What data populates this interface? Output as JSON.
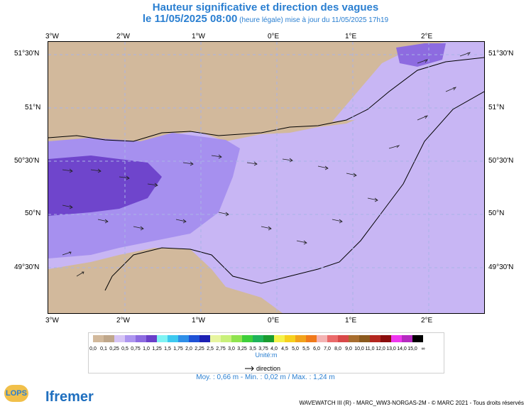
{
  "title_line1": "Hauteur significative et direction des vagues",
  "title_line2_main": "le 11/05/2025 08:00",
  "title_line2_sub": " (heure légale) mise à jour du 11/05/2025 17h19",
  "axes": {
    "top_lon": [
      "3°W",
      "2°W",
      "1°W",
      "0°E",
      "1°E",
      "2°E"
    ],
    "bottom_lon": [
      "3°W",
      "2°W",
      "1°W",
      "0°E",
      "1°E",
      "2°E"
    ],
    "left_lat": [
      "51°30'N",
      "51°N",
      "50°30'N",
      "50°N",
      "49°30'N"
    ],
    "right_lat": [
      "51°30'N",
      "51°N",
      "50°30'N",
      "50°N",
      "49°30'N"
    ]
  },
  "legend": {
    "values": [
      "0,0",
      "0,1",
      "0,25",
      "0,5",
      "0,75",
      "1,0",
      "1,25",
      "1,5",
      "1,75",
      "2,0",
      "2,25",
      "2,5",
      "2,75",
      "3,0",
      "3,25",
      "3,5",
      "3,75",
      "4,0",
      "4,5",
      "5,0",
      "5,5",
      "6,0",
      "7,0",
      "8,0",
      "9,0",
      "10,0",
      "11,0",
      "12,0",
      "13,0",
      "14,0",
      "15,0",
      "∞"
    ],
    "colors": [
      "#d2b99c",
      "#bfa78b",
      "#d6c4f5",
      "#ad95ef",
      "#8d6be0",
      "#6a3fc9",
      "#7ff3f3",
      "#3ec9ef",
      "#2f8fe8",
      "#1f52d6",
      "#1c20b3",
      "#e7f5a0",
      "#c8f07a",
      "#8fe34f",
      "#3ecf3a",
      "#1fb35a",
      "#1a9c2f",
      "#f4f24a",
      "#f6d01e",
      "#f2a31b",
      "#f07a1b",
      "#f3b3b3",
      "#ea6a6a",
      "#d84848",
      "#a86d2e",
      "#8b5a1e",
      "#b3261e",
      "#8a0d0d",
      "#ef36ef",
      "#b52ac0",
      "#000000"
    ],
    "unit": "Unité:m",
    "direction_label": "direction"
  },
  "stats": "Moy. : 0,66 m   -   Min. : 0,02 m / Max. : 1,24 m",
  "footer": "WAVEWATCH III (R) - MARC_WW3-NORGAS-2M - © MARC 2021 - Tous droits réservés",
  "logos": {
    "lops": "LOPS",
    "ifremer": "Ifremer"
  },
  "palette": {
    "land": "#d2b99c",
    "title": "#2a7fd1",
    "grid": "#a9b4e6"
  }
}
